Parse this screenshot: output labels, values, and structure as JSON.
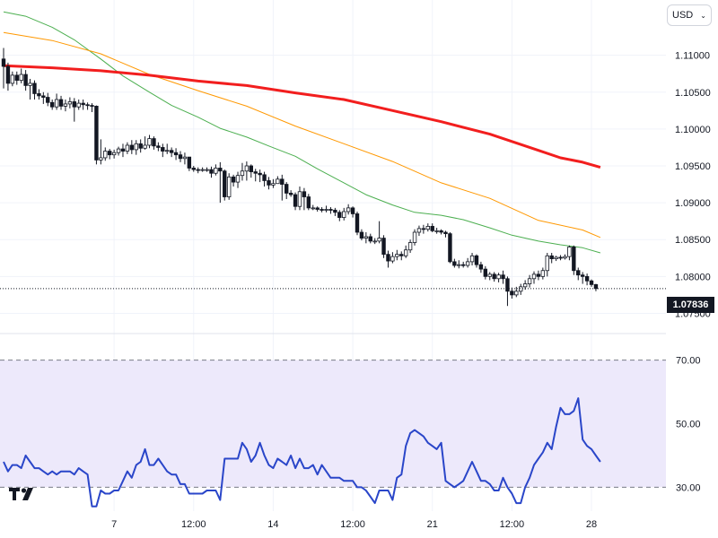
{
  "currency": {
    "label": "USD",
    "chevron_icon": "chevron-down-icon"
  },
  "last_price": "1.07836",
  "logo_icon": "tradingview-logo-icon",
  "chart_data": [
    {
      "type": "candlestick",
      "price_ticks": [
        "1.11000",
        "1.10500",
        "1.10000",
        "1.09500",
        "1.09000",
        "1.08500",
        "1.08000",
        "1.07500"
      ],
      "time_ticks": [
        "7",
        "12:00",
        "14",
        "12:00",
        "21",
        "12:00",
        "28"
      ],
      "ylim": [
        1.0725,
        1.1175
      ],
      "last_price": 1.07836,
      "colors": {
        "candle": "#131722",
        "ma_fast": "#4caf50",
        "ma_mid": "#ff9800",
        "ma_slow": "#f21e1e"
      },
      "moving_averages": [
        {
          "points": [
            [
              0,
              1.1159
            ],
            [
              5,
              1.1153
            ],
            [
              11,
              1.1138
            ],
            [
              16,
              1.1121
            ],
            [
              22,
              1.1095
            ],
            [
              27,
              1.1072
            ],
            [
              33,
              1.105
            ],
            [
              38,
              1.1032
            ],
            [
              44,
              1.1016
            ],
            [
              49,
              1.1001
            ],
            [
              55,
              1.0989
            ],
            [
              60,
              1.0977
            ],
            [
              66,
              1.0963
            ],
            [
              71,
              1.0946
            ],
            [
              77,
              1.0927
            ],
            [
              82,
              1.0911
            ],
            [
              88,
              1.0897
            ],
            [
              93,
              1.0887
            ],
            [
              99,
              1.0883
            ],
            [
              104,
              1.0877
            ],
            [
              110,
              1.0866
            ],
            [
              115,
              1.0856
            ],
            [
              121,
              1.0848
            ],
            [
              126,
              1.0843
            ],
            [
              131,
              1.0839
            ],
            [
              135,
              1.0832
            ]
          ]
        },
        {
          "points": [
            [
              0,
              1.1131
            ],
            [
              11,
              1.112
            ],
            [
              22,
              1.1102
            ],
            [
              33,
              1.1074
            ],
            [
              44,
              1.1052
            ],
            [
              55,
              1.1031
            ],
            [
              66,
              1.1004
            ],
            [
              77,
              1.098
            ],
            [
              88,
              1.0956
            ],
            [
              99,
              1.0927
            ],
            [
              110,
              1.0906
            ],
            [
              121,
              1.0876
            ],
            [
              131,
              1.0863
            ],
            [
              135,
              1.0853
            ]
          ]
        },
        {
          "points": [
            [
              0,
              1.1086
            ],
            [
              11,
              1.1083
            ],
            [
              22,
              1.1079
            ],
            [
              33,
              1.1073
            ],
            [
              44,
              1.1065
            ],
            [
              55,
              1.1059
            ],
            [
              66,
              1.1049
            ],
            [
              77,
              1.104
            ],
            [
              88,
              1.1025
            ],
            [
              99,
              1.101
            ],
            [
              110,
              1.0993
            ],
            [
              121,
              1.0971
            ],
            [
              126,
              1.0961
            ],
            [
              131,
              1.0955
            ],
            [
              135,
              1.0948
            ]
          ]
        }
      ],
      "candles": [
        [
          1.1095,
          1.1085,
          1.111,
          1.1055
        ],
        [
          1.1085,
          1.1062,
          1.109,
          1.1052
        ],
        [
          1.1062,
          1.1073,
          1.1078,
          1.1058
        ],
        [
          1.1073,
          1.1066,
          1.1078,
          1.106
        ],
        [
          1.1066,
          1.1074,
          1.1082,
          1.1062
        ],
        [
          1.1074,
          1.1059,
          1.108,
          1.1052
        ],
        [
          1.1059,
          1.1062,
          1.1068,
          1.104
        ],
        [
          1.1062,
          1.1048,
          1.1066,
          1.104
        ],
        [
          1.1048,
          1.1045,
          1.1054,
          1.104
        ],
        [
          1.1045,
          1.1043,
          1.105,
          1.1034
        ],
        [
          1.1043,
          1.1036,
          1.1049,
          1.1031
        ],
        [
          1.1036,
          1.103,
          1.104,
          1.1026
        ],
        [
          1.103,
          1.104,
          1.1048,
          1.1026
        ],
        [
          1.104,
          1.1031,
          1.1045,
          1.1026
        ],
        [
          1.1031,
          1.1034,
          1.104,
          1.1024
        ],
        [
          1.1034,
          1.1037,
          1.1043,
          1.1028
        ],
        [
          1.1037,
          1.103,
          1.1042,
          1.101
        ],
        [
          1.103,
          1.1035,
          1.104,
          1.1026
        ],
        [
          1.1035,
          1.1033,
          1.104,
          1.1026
        ],
        [
          1.1033,
          1.1032,
          1.1036,
          1.1026
        ],
        [
          1.1032,
          1.1031,
          1.1035,
          1.1023
        ],
        [
          1.1031,
          1.0958,
          1.1032,
          1.0952
        ],
        [
          1.0958,
          1.0961,
          1.0986,
          1.0952
        ],
        [
          1.0961,
          1.097,
          1.0975,
          1.0957
        ],
        [
          1.097,
          1.0965,
          1.0973,
          1.0959
        ],
        [
          1.0965,
          1.0968,
          1.0972,
          1.096
        ],
        [
          1.0968,
          1.0973,
          1.0976,
          1.0964
        ],
        [
          1.0973,
          1.097,
          1.098,
          1.0962
        ],
        [
          1.097,
          1.0978,
          1.0982,
          1.0966
        ],
        [
          1.0978,
          1.0972,
          1.0985,
          1.0966
        ],
        [
          1.0972,
          1.098,
          1.0985,
          1.0965
        ],
        [
          1.098,
          1.0974,
          1.0986,
          1.0968
        ],
        [
          1.0974,
          1.0978,
          1.099,
          1.0972
        ],
        [
          1.0978,
          1.0987,
          1.0992,
          1.0974
        ],
        [
          1.0987,
          1.0977,
          1.099,
          1.0972
        ],
        [
          1.0977,
          1.0975,
          1.0982,
          1.097
        ],
        [
          1.0975,
          1.097,
          1.098,
          1.0962
        ],
        [
          1.097,
          1.0971,
          1.098,
          1.0966
        ],
        [
          1.0971,
          1.0968,
          1.0975,
          1.0962
        ],
        [
          1.0968,
          1.0965,
          1.0974,
          1.0958
        ],
        [
          1.0965,
          1.096,
          1.097,
          1.0955
        ],
        [
          1.096,
          1.0962,
          1.0968,
          1.0952
        ],
        [
          1.0962,
          1.0947,
          1.0962,
          1.0943
        ],
        [
          1.0947,
          1.0945,
          1.095,
          1.0942
        ],
        [
          1.0945,
          1.0944,
          1.0948,
          1.094
        ],
        [
          1.0944,
          1.0945,
          1.0948,
          1.0942
        ],
        [
          1.0945,
          1.0945,
          1.0948,
          1.0942
        ],
        [
          1.0945,
          1.094,
          1.0949,
          1.0934
        ],
        [
          1.094,
          1.0947,
          1.0952,
          1.0937
        ],
        [
          1.0947,
          1.0943,
          1.0955,
          1.09
        ],
        [
          1.0943,
          1.0908,
          1.0945,
          1.0903
        ],
        [
          1.0908,
          1.0935,
          1.094,
          1.0904
        ],
        [
          1.0935,
          1.0928,
          1.0938,
          1.0922
        ],
        [
          1.0928,
          1.0937,
          1.0942,
          1.092
        ],
        [
          1.0937,
          1.0943,
          1.0954,
          1.093
        ],
        [
          1.0943,
          1.095,
          1.0956,
          1.093
        ],
        [
          1.095,
          1.0942,
          1.0952,
          1.0934
        ],
        [
          1.0942,
          1.094,
          1.0946,
          1.0929
        ],
        [
          1.094,
          1.0938,
          1.0945,
          1.0928
        ],
        [
          1.0938,
          1.093,
          1.0942,
          1.0922
        ],
        [
          1.093,
          1.0924,
          1.0935,
          1.0918
        ],
        [
          1.0924,
          1.0926,
          1.0932,
          1.092
        ],
        [
          1.0926,
          1.0932,
          1.0936,
          1.0926
        ],
        [
          1.0932,
          1.0925,
          1.0938,
          1.0903
        ],
        [
          1.0925,
          1.0913,
          1.0928,
          1.0905
        ],
        [
          1.0913,
          1.0911,
          1.0917,
          1.0908
        ],
        [
          1.0911,
          1.0895,
          1.0914,
          1.089
        ],
        [
          1.0895,
          1.0915,
          1.0922,
          1.089
        ],
        [
          1.0915,
          1.0908,
          1.092,
          1.089
        ],
        [
          1.0908,
          1.0893,
          1.0912,
          1.089
        ],
        [
          1.0893,
          1.0893,
          1.0897,
          1.089
        ],
        [
          1.0893,
          1.0891,
          1.0895,
          1.0888
        ],
        [
          1.0891,
          1.089,
          1.0894,
          1.0887
        ],
        [
          1.089,
          1.0891,
          1.0896,
          1.0887
        ],
        [
          1.0891,
          1.089,
          1.0894,
          1.0885
        ],
        [
          1.089,
          1.0887,
          1.0893,
          1.0882
        ],
        [
          1.0887,
          1.088,
          1.089,
          1.0875
        ],
        [
          1.088,
          1.0888,
          1.0893,
          1.0876
        ],
        [
          1.0888,
          1.0893,
          1.0898,
          1.0884
        ],
        [
          1.0893,
          1.0885,
          1.0895,
          1.088
        ],
        [
          1.0885,
          1.086,
          1.0888,
          1.0856
        ],
        [
          1.086,
          1.0852,
          1.0864,
          1.0849
        ],
        [
          1.0852,
          1.0854,
          1.086,
          1.0845
        ],
        [
          1.0854,
          1.0848,
          1.0858,
          1.0845
        ],
        [
          1.0848,
          1.0848,
          1.0852,
          1.0844
        ],
        [
          1.0848,
          1.0852,
          1.0875,
          1.0845
        ],
        [
          1.0852,
          1.083,
          1.0856,
          1.0825
        ],
        [
          1.083,
          1.0821,
          1.0835,
          1.0812
        ],
        [
          1.0821,
          1.0827,
          1.0833,
          1.0818
        ],
        [
          1.0827,
          1.083,
          1.0836,
          1.0822
        ],
        [
          1.083,
          1.0828,
          1.0834,
          1.0822
        ],
        [
          1.0828,
          1.0836,
          1.0842,
          1.0825
        ],
        [
          1.0836,
          1.0846,
          1.085,
          1.0832
        ],
        [
          1.0846,
          1.086,
          1.0864,
          1.0842
        ],
        [
          1.086,
          1.0865,
          1.0869,
          1.0855
        ],
        [
          1.0865,
          1.0864,
          1.087,
          1.0858
        ],
        [
          1.0864,
          1.0868,
          1.0872,
          1.0861
        ],
        [
          1.0868,
          1.0862,
          1.0872,
          1.086
        ],
        [
          1.0862,
          1.0862,
          1.0866,
          1.0858
        ],
        [
          1.0862,
          1.086,
          1.0864,
          1.0857
        ],
        [
          1.086,
          1.0858,
          1.0862,
          1.0853
        ],
        [
          1.0858,
          1.082,
          1.086,
          1.0818
        ],
        [
          1.082,
          1.0815,
          1.0824,
          1.0812
        ],
        [
          1.0815,
          1.0816,
          1.0822,
          1.0811
        ],
        [
          1.0816,
          1.0815,
          1.082,
          1.0812
        ],
        [
          1.0815,
          1.082,
          1.0825,
          1.0812
        ],
        [
          1.082,
          1.0828,
          1.0832,
          1.0815
        ],
        [
          1.0828,
          1.0816,
          1.083,
          1.0812
        ],
        [
          1.0816,
          1.081,
          1.082,
          1.0805
        ],
        [
          1.081,
          1.08,
          1.0814,
          1.0796
        ],
        [
          1.08,
          1.0803,
          1.0806,
          1.0795
        ],
        [
          1.0803,
          1.0797,
          1.0806,
          1.0793
        ],
        [
          1.0797,
          1.0802,
          1.0805,
          1.0792
        ],
        [
          1.0802,
          1.0797,
          1.0808,
          1.079
        ],
        [
          1.0797,
          1.078,
          1.08,
          1.076
        ],
        [
          1.078,
          1.0775,
          1.0785,
          1.077
        ],
        [
          1.0775,
          1.078,
          1.0786,
          1.0772
        ],
        [
          1.078,
          1.0786,
          1.079,
          1.0775
        ],
        [
          1.0786,
          1.079,
          1.0795,
          1.0782
        ],
        [
          1.079,
          1.0797,
          1.0802,
          1.0785
        ],
        [
          1.0797,
          1.0803,
          1.0807,
          1.079
        ],
        [
          1.0803,
          1.08,
          1.0808,
          1.0795
        ],
        [
          1.08,
          1.0808,
          1.0812,
          1.0796
        ],
        [
          1.0808,
          1.0828,
          1.0832,
          1.08
        ],
        [
          1.0828,
          1.0824,
          1.0832,
          1.0818
        ],
        [
          1.0824,
          1.0826,
          1.0828,
          1.0821
        ],
        [
          1.0826,
          1.0825,
          1.0829,
          1.0822
        ],
        [
          1.0825,
          1.0827,
          1.083,
          1.0823
        ],
        [
          1.0827,
          1.084,
          1.0842,
          1.0822
        ],
        [
          1.084,
          1.0808,
          1.0842,
          1.0802
        ],
        [
          1.0808,
          1.0802,
          1.0812,
          1.0795
        ],
        [
          1.0802,
          1.08,
          1.0806,
          1.079
        ],
        [
          1.08,
          1.0794,
          1.0804,
          1.0788
        ],
        [
          1.0794,
          1.0789,
          1.0796,
          1.0786
        ],
        [
          1.0789,
          1.07836,
          1.079,
          1.078
        ]
      ]
    },
    {
      "type": "line",
      "indicator": "rsi",
      "y_ticks": [
        "70.00",
        "50.00",
        "30.00"
      ],
      "ylim": [
        22.5,
        77.5
      ],
      "band": [
        30,
        70
      ],
      "colors": {
        "line": "#2a46c9",
        "band_fill": "#ede9fb",
        "band_line": "#787b86"
      },
      "values": [
        38,
        35,
        37,
        37,
        36,
        40,
        38,
        36,
        36,
        35,
        34,
        35,
        34,
        35,
        35,
        35,
        34,
        36,
        35,
        34,
        24,
        24,
        29,
        28,
        28,
        29,
        29,
        32,
        35,
        33,
        37,
        38,
        42,
        37,
        37,
        39,
        37,
        35,
        34,
        34,
        31,
        31,
        28,
        28,
        28,
        28,
        29,
        29,
        29,
        26,
        39,
        39,
        39,
        39,
        44,
        42,
        38,
        40,
        44,
        40,
        37,
        36,
        39,
        38,
        37,
        40,
        36,
        39,
        36,
        36,
        37,
        34,
        37,
        35,
        33,
        33,
        33,
        32,
        32,
        32,
        30,
        30,
        29,
        27,
        25,
        29,
        29,
        29,
        26,
        33,
        34,
        43,
        47,
        48,
        47,
        46,
        44,
        43,
        42,
        44,
        32,
        31,
        30,
        31,
        32,
        35,
        38,
        35,
        32,
        32,
        31,
        29,
        29,
        33,
        30,
        28,
        25,
        25,
        30,
        33,
        37,
        39,
        41,
        44,
        42,
        49,
        55,
        53,
        53,
        54,
        58,
        45,
        43,
        42,
        40,
        38
      ]
    }
  ]
}
